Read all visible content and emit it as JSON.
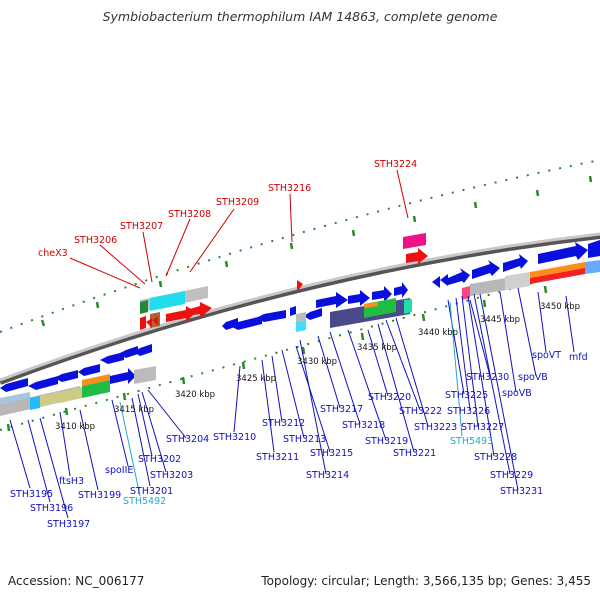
{
  "title": "Symbiobacterium thermophilum IAM 14863, complete genome",
  "footer": {
    "accession": "Accession: NC_006177",
    "summary": "Topology: circular; Length: 3,566,135 bp; Genes: 3,455"
  },
  "colors": {
    "forward_gene": "#0a10dc",
    "label_blue": "#1010c0",
    "label_red": "#cc0000",
    "label_cyan": "#22aacc",
    "tick_green": "#2a8a2a",
    "backbone": "#888888"
  },
  "scale_labels": [
    "3410 kbp",
    "3415 kbp",
    "3420 kbp",
    "3425 kbp",
    "3430 kbp",
    "3435 kbp",
    "3440 kbp",
    "3445 kbp",
    "3450 kbp"
  ],
  "gene_labels_top": [
    "cheX3",
    "STH3206",
    "STH3207",
    "STH3208",
    "STH3209",
    "STH3216",
    "STH3224"
  ],
  "gene_labels_bottom": [
    "STH3195",
    "STH3196",
    "STH3197",
    "ftsH3",
    "STH3199",
    "spoIIE",
    "STH5492",
    "STH3201",
    "STH3202",
    "STH3203",
    "STH3204",
    "STH3210",
    "STH3211",
    "STH3212",
    "STH3213",
    "STH3214",
    "STH3215",
    "STH3217",
    "STH3218",
    "STH3219",
    "STH3220",
    "STH3221",
    "STH3222",
    "STH3223",
    "STH5493",
    "STH3225",
    "STH3226",
    "STH3227",
    "STH3228",
    "STH3229",
    "STH3230",
    "STH3231",
    "spoVB",
    "spoVB",
    "spoVT",
    "mfd"
  ]
}
